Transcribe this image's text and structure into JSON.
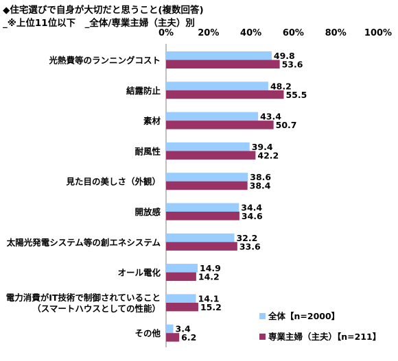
{
  "chart_data": {
    "type": "bar",
    "orientation": "horizontal",
    "title": "◆住宅選びで自身が大切だと思うこと(複数回答)",
    "subtitle": "_※上位11位以下　_全体/専業主婦（主夫）別",
    "categories": [
      [
        "光熱費等のランニングコスト"
      ],
      [
        "結露防止"
      ],
      [
        "素材"
      ],
      [
        "耐風性"
      ],
      [
        "見た目の美しさ（外観）"
      ],
      [
        "開放感"
      ],
      [
        "太陽光発電システム等の創エネシステム"
      ],
      [
        "オール電化"
      ],
      [
        "電力消費がIT技術で制御されていること",
        "（スマートハウスとしての性能）"
      ],
      [
        "その他"
      ]
    ],
    "series": [
      {
        "name": "全体【n=2000】",
        "color": "#99ccff",
        "values": [
          49.8,
          48.2,
          43.4,
          39.4,
          38.6,
          34.4,
          32.2,
          14.9,
          14.1,
          3.4
        ]
      },
      {
        "name": "専業主婦（主夫）【n=211】",
        "color": "#993366",
        "values": [
          53.6,
          55.5,
          50.7,
          42.2,
          38.4,
          34.6,
          33.6,
          14.2,
          15.2,
          6.2
        ]
      }
    ],
    "value_labels": [
      [
        "49.8",
        "48.2",
        "43.4",
        "39.4",
        "38.6",
        "34.4",
        "32.2",
        "14.9",
        "14.1",
        "3.4"
      ],
      [
        "53.6",
        "55.5",
        "50.7",
        "42.2",
        "38.4",
        "34.6",
        "33.6",
        "14.2",
        "15.2",
        "6.2"
      ]
    ],
    "xlim": [
      0,
      100
    ],
    "xticks": [
      0,
      20,
      40,
      60,
      80,
      100
    ],
    "xtick_labels": [
      "0%",
      "20%",
      "40%",
      "60%",
      "80%",
      "100%"
    ],
    "legend_position": "bottom-right",
    "grid": false
  }
}
